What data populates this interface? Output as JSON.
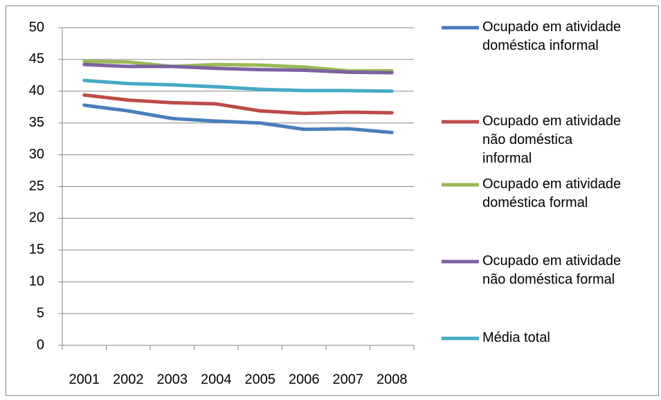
{
  "chart_data": {
    "type": "line",
    "categories": [
      "2001",
      "2002",
      "2003",
      "2004",
      "2005",
      "2006",
      "2007",
      "2008"
    ],
    "series": [
      {
        "name": "Ocupado em atividade doméstica informal",
        "color": "#4a7ebb",
        "values": [
          37.8,
          36.9,
          35.7,
          35.3,
          35.0,
          34.0,
          34.1,
          33.5
        ]
      },
      {
        "name": "Ocupado em atividade não doméstica informal",
        "color": "#be4b48",
        "values": [
          39.4,
          38.6,
          38.2,
          38.0,
          36.9,
          36.5,
          36.7,
          36.6
        ]
      },
      {
        "name": "Ocupado em atividade doméstica formal",
        "color": "#98b954",
        "values": [
          44.7,
          44.6,
          43.9,
          44.2,
          44.1,
          43.8,
          43.2,
          43.2
        ]
      },
      {
        "name": "Ocupado em atividade não doméstica formal",
        "color": "#7d60a0",
        "values": [
          44.2,
          43.9,
          43.9,
          43.6,
          43.4,
          43.3,
          43.0,
          42.9
        ]
      },
      {
        "name": "Média total",
        "color": "#46aac5",
        "values": [
          41.7,
          41.2,
          41.0,
          40.7,
          40.3,
          40.1,
          40.1,
          40.0
        ]
      }
    ],
    "ylim": [
      0,
      50
    ],
    "yticks": [
      0,
      5,
      10,
      15,
      20,
      25,
      30,
      35,
      40,
      45,
      50
    ],
    "grid": true,
    "legend": "right"
  }
}
